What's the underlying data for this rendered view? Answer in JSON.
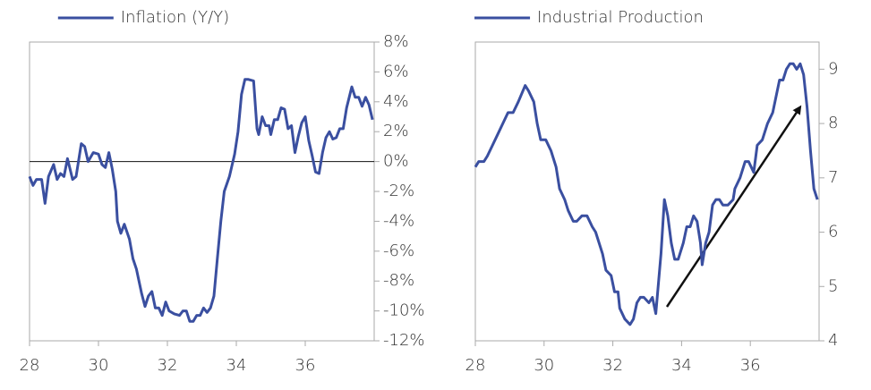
{
  "chart_data": [
    {
      "type": "line",
      "legend": "top",
      "x": [
        28.0,
        28.1,
        28.2,
        28.35,
        28.45,
        28.55,
        28.7,
        28.8,
        28.9,
        29.0,
        29.1,
        29.25,
        29.35,
        29.5,
        29.6,
        29.7,
        29.85,
        30.0,
        30.1,
        30.2,
        30.3,
        30.4,
        30.5,
        30.55,
        30.65,
        30.75,
        30.9,
        31.0,
        31.1,
        31.25,
        31.35,
        31.45,
        31.55,
        31.65,
        31.75,
        31.85,
        31.95,
        32.05,
        32.2,
        32.35,
        32.45,
        32.55,
        32.65,
        32.75,
        32.85,
        32.95,
        33.05,
        33.15,
        33.25,
        33.35,
        33.45,
        33.55,
        33.65,
        33.8,
        33.95,
        34.05,
        34.15,
        34.25,
        34.35,
        34.5,
        34.6,
        34.65,
        34.75,
        34.85,
        34.95,
        35.0,
        35.1,
        35.2,
        35.3,
        35.4,
        35.5,
        35.6,
        35.7,
        35.8,
        35.9,
        36.0,
        36.1,
        36.2,
        36.3,
        36.4,
        36.5,
        36.6,
        36.7,
        36.8,
        36.9,
        37.0,
        37.1,
        37.2,
        37.35,
        37.45,
        37.55,
        37.65,
        37.75,
        37.85,
        37.95
      ],
      "series": [
        {
          "name": "Inflation (Y/Y)",
          "color": "#3a4fa0",
          "values": [
            -1,
            -1.6,
            -1.2,
            -1.2,
            -2.8,
            -1,
            -0.2,
            -1.2,
            -0.8,
            -1,
            0.2,
            -1.2,
            -1,
            1.2,
            1,
            0,
            0.6,
            0.5,
            -0.2,
            -0.4,
            0.6,
            -0.5,
            -2,
            -4,
            -4.8,
            -4.2,
            -5.2,
            -6.5,
            -7.2,
            -8.8,
            -9.7,
            -9,
            -8.7,
            -9.8,
            -9.8,
            -10.3,
            -9.4,
            -10,
            -10.2,
            -10.3,
            -10,
            -10,
            -10.7,
            -10.7,
            -10.3,
            -10.3,
            -9.8,
            -10.1,
            -9.8,
            -9,
            -6.5,
            -4,
            -2,
            -1,
            0.5,
            2,
            4.5,
            5.5,
            5.5,
            5.4,
            2.2,
            1.8,
            3,
            2.4,
            2.4,
            1.8,
            2.8,
            2.8,
            3.6,
            3.5,
            2.2,
            2.4,
            0.6,
            1.7,
            2.6,
            3,
            1.4,
            0.4,
            -0.7,
            -0.8,
            0.6,
            1.6,
            2,
            1.5,
            1.6,
            2.2,
            2.2,
            3.6,
            5,
            4.3,
            4.3,
            3.7,
            4.3,
            3.8,
            2.8
          ]
        }
      ],
      "xlim": [
        28,
        38
      ],
      "xticks": [
        28,
        30,
        32,
        34,
        36
      ],
      "ylim": [
        -12,
        8
      ],
      "yticks": [
        {
          "value": 8,
          "label": "8%"
        },
        {
          "value": 6,
          "label": "6%"
        },
        {
          "value": 4,
          "label": "4%"
        },
        {
          "value": 2,
          "label": "2%"
        },
        {
          "value": 0,
          "label": "0%"
        },
        {
          "value": -2,
          "label": "-2%"
        },
        {
          "value": -4,
          "label": "-4%"
        },
        {
          "value": -6,
          "label": "-6%"
        },
        {
          "value": -8,
          "label": "-8%"
        },
        {
          "value": -10,
          "label": "-10%"
        },
        {
          "value": -12,
          "label": "-12%"
        }
      ],
      "zero_line": true,
      "grid": false
    },
    {
      "type": "line",
      "legend": "top",
      "x": [
        28.0,
        28.1,
        28.25,
        28.35,
        28.5,
        28.65,
        28.8,
        28.95,
        29.1,
        29.25,
        29.45,
        29.55,
        29.7,
        29.8,
        29.9,
        30.05,
        30.2,
        30.35,
        30.45,
        30.6,
        30.7,
        30.85,
        30.95,
        31.1,
        31.25,
        31.4,
        31.5,
        31.7,
        31.8,
        31.95,
        32.05,
        32.15,
        32.2,
        32.35,
        32.5,
        32.6,
        32.7,
        32.8,
        32.9,
        33.05,
        33.15,
        33.25,
        33.4,
        33.5,
        33.6,
        33.7,
        33.8,
        33.9,
        34.05,
        34.15,
        34.25,
        34.35,
        34.45,
        34.55,
        34.6,
        34.7,
        34.8,
        34.9,
        35.0,
        35.1,
        35.2,
        35.35,
        35.5,
        35.55,
        35.7,
        35.85,
        35.95,
        36.1,
        36.2,
        36.35,
        36.5,
        36.65,
        36.75,
        36.85,
        36.95,
        37.05,
        37.15,
        37.25,
        37.35,
        37.45,
        37.55,
        37.65,
        37.75,
        37.85,
        37.95
      ],
      "series": [
        {
          "name": "Industrial Production",
          "color": "#3a4fa0",
          "values": [
            7.2,
            7.3,
            7.3,
            7.4,
            7.6,
            7.8,
            8.0,
            8.2,
            8.2,
            8.4,
            8.7,
            8.6,
            8.4,
            8.0,
            7.7,
            7.7,
            7.5,
            7.2,
            6.8,
            6.6,
            6.4,
            6.2,
            6.2,
            6.3,
            6.3,
            6.1,
            6.0,
            5.6,
            5.3,
            5.2,
            4.9,
            4.9,
            4.6,
            4.4,
            4.3,
            4.4,
            4.7,
            4.8,
            4.8,
            4.7,
            4.8,
            4.5,
            5.6,
            6.6,
            6.3,
            5.8,
            5.5,
            5.5,
            5.8,
            6.1,
            6.1,
            6.3,
            6.2,
            5.8,
            5.4,
            5.8,
            6.0,
            6.5,
            6.6,
            6.6,
            6.5,
            6.5,
            6.6,
            6.8,
            7.0,
            7.3,
            7.3,
            7.1,
            7.6,
            7.7,
            8.0,
            8.2,
            8.5,
            8.8,
            8.8,
            9.0,
            9.1,
            9.1,
            9.0,
            9.1,
            8.9,
            8.3,
            7.5,
            6.8,
            6.6
          ]
        }
      ],
      "xlim": [
        28,
        38
      ],
      "xticks": [
        28,
        30,
        32,
        34,
        36
      ],
      "ylim": [
        4,
        9.5
      ],
      "yticks": [
        4,
        5,
        6,
        7,
        8,
        9
      ],
      "zero_line": false,
      "grid": false
    }
  ]
}
